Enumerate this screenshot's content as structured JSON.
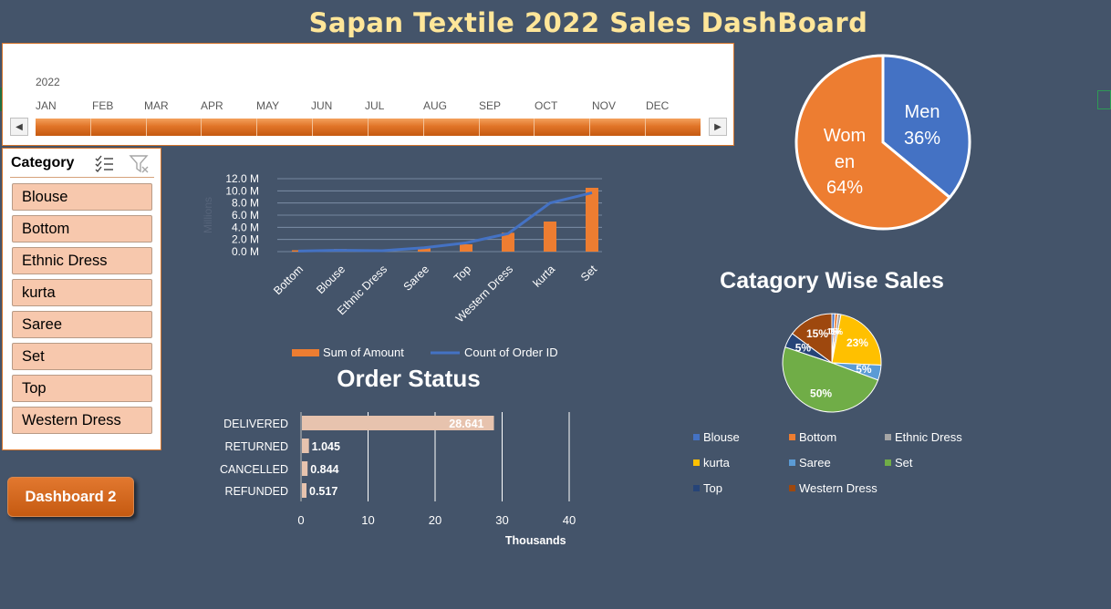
{
  "title": "Sapan Textile 2022 Sales DashBoard",
  "timeline": {
    "year": "2022",
    "months": [
      "JAN",
      "FEB",
      "MAR",
      "APR",
      "MAY",
      "JUN",
      "JUL",
      "AUG",
      "SEP",
      "OCT",
      "NOV",
      "DEC"
    ]
  },
  "slicer": {
    "header": "Category",
    "items": [
      "Blouse",
      "Bottom",
      "Ethnic Dress",
      "kurta",
      "Saree",
      "Set",
      "Top",
      "Western Dress"
    ]
  },
  "dashboard_button": "Dashboard 2",
  "colors": {
    "background": "#44546a",
    "orange": "#ed7d31",
    "blue": "#4472c4",
    "title": "#ffe699"
  },
  "chart_data": [
    {
      "type": "bar",
      "title": "",
      "categories": [
        "Bottom",
        "Blouse",
        "Ethnic Dress",
        "Saree",
        "Top",
        "Western Dress",
        "kurta",
        "Set"
      ],
      "series": [
        {
          "name": "Sum of Amount",
          "type": "bar",
          "axis": "left",
          "values": [
            0.15,
            0.45,
            0.23,
            0.75,
            1.2,
            3.1,
            4.95,
            10.5
          ]
        },
        {
          "name": "Count of Order ID",
          "type": "line",
          "axis": "right",
          "values": [
            120,
            270,
            180,
            800,
            1800,
            3700,
            10000,
            12100
          ]
        }
      ],
      "ylabel": "Millions",
      "ylim": [
        0,
        12
      ],
      "yticks": [
        "0.0 M",
        "2.0 M",
        "4.0 M",
        "6.0 M",
        "8.0 M",
        "10.0 M",
        "12.0 M"
      ],
      "y2lim": [
        0,
        15000
      ],
      "y2ticks": [
        "0",
        "5000",
        "10000",
        "15000"
      ],
      "legend": "bottom",
      "grid": true
    },
    {
      "type": "pie",
      "title": "",
      "labels": [
        "Men",
        "Women"
      ],
      "values": [
        36,
        64
      ],
      "value_labels": [
        "36%",
        "64%"
      ],
      "colors": [
        "#4472c4",
        "#ed7d31"
      ]
    },
    {
      "type": "pie",
      "title": "Catagory Wise Sales",
      "labels": [
        "Blouse",
        "Bottom",
        "Ethnic Dress",
        "kurta",
        "Saree",
        "Set",
        "Top",
        "Western Dress"
      ],
      "values": [
        1,
        1,
        1,
        23,
        5,
        50,
        5,
        15
      ],
      "value_labels": [
        "1%",
        "1%",
        "1%",
        "23%",
        "5%",
        "50%",
        "5%",
        "15%"
      ],
      "colors": [
        "#4472c4",
        "#ed7d31",
        "#a5a5a5",
        "#ffc000",
        "#5b9bd5",
        "#70ad47",
        "#264478",
        "#9e480e"
      ],
      "legend": "bottom"
    },
    {
      "type": "bar",
      "orientation": "horizontal",
      "title": "Order Status",
      "categories": [
        "DELIVERED",
        "RETURNED",
        "CANCELLED",
        "REFUNDED"
      ],
      "values": [
        28.641,
        1.045,
        0.844,
        0.517
      ],
      "value_labels": [
        "28.641",
        "1.045",
        "0.844",
        "0.517"
      ],
      "xlabel": "Thousands",
      "xlim": [
        0,
        40
      ],
      "xticks": [
        "0",
        "10",
        "20",
        "30",
        "40"
      ],
      "grid": true
    }
  ]
}
